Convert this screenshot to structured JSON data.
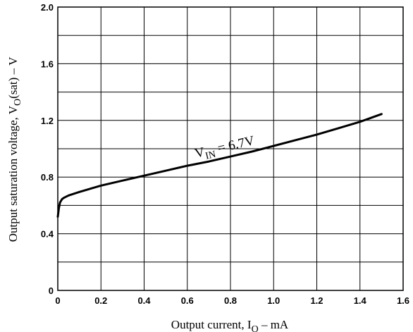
{
  "chart_data": {
    "type": "line",
    "title": "",
    "xlabel": {
      "main": "Output current, I",
      "sub": "O",
      "unit": " –  mA"
    },
    "ylabel": {
      "main": "Output saturation voltage, V",
      "sub": "O",
      "tail": "(sat)",
      "unit": " –  V"
    },
    "xlim": [
      0,
      1.6
    ],
    "ylim": [
      0,
      2.0
    ],
    "x_ticks": [
      0,
      0.2,
      0.4,
      0.6,
      0.8,
      1.0,
      1.2,
      1.4,
      1.6
    ],
    "x_tick_labels": [
      "0",
      "0.2",
      "0.4",
      "0.6",
      "0.8",
      "1.0",
      "1.2",
      "1.4",
      "1.6"
    ],
    "y_ticks": [
      0,
      0.4,
      0.8,
      1.2,
      1.6,
      2.0
    ],
    "y_tick_labels": [
      "0",
      "0.4",
      "0.8",
      "1.2",
      "1.6",
      "2.0"
    ],
    "x_grid_step": 0.2,
    "y_grid_step": 0.2,
    "grid": true,
    "series": [
      {
        "x": [
          0.0,
          0.005,
          0.01,
          0.02,
          0.03,
          0.05,
          0.08,
          0.1,
          0.2,
          0.3,
          0.4,
          0.5,
          0.6,
          0.7,
          0.8,
          0.9,
          1.0,
          1.1,
          1.2,
          1.3,
          1.4,
          1.5
        ],
        "y": [
          0.52,
          0.58,
          0.62,
          0.645,
          0.655,
          0.67,
          0.685,
          0.695,
          0.74,
          0.775,
          0.81,
          0.845,
          0.88,
          0.91,
          0.945,
          0.98,
          1.02,
          1.06,
          1.1,
          1.145,
          1.19,
          1.245
        ],
        "color": "#000000"
      }
    ],
    "annotations": [
      {
        "main": "V",
        "sub": "IN",
        "rest": " = 6.7V"
      }
    ]
  }
}
